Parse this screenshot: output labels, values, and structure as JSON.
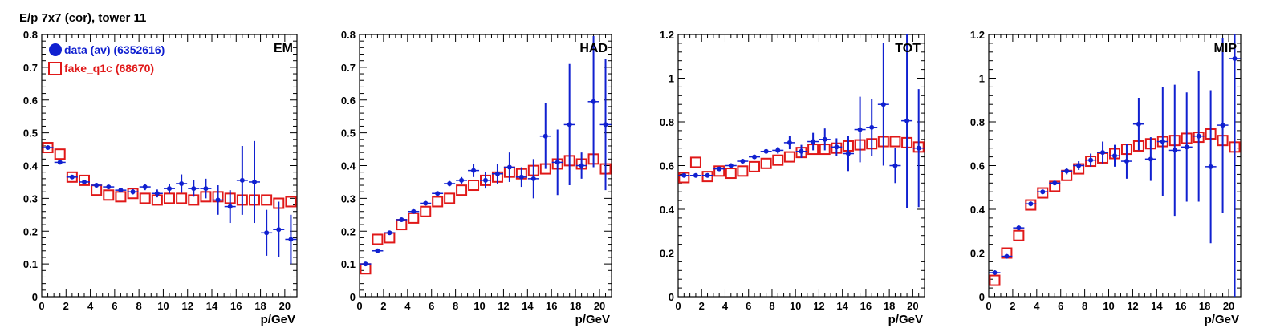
{
  "figure": {
    "title": "E/p 7x7 (cor), tower 11",
    "colors": {
      "data": "#1020d0",
      "fake": "#e01818",
      "axis": "#000000"
    }
  },
  "legend": {
    "items": [
      {
        "label": "data (av) (6352616)",
        "marker": "filled-circle",
        "color": "#1020d0"
      },
      {
        "label": "fake_q1c (68670)",
        "marker": "open-square",
        "color": "#e01818"
      }
    ],
    "placement": "top-left of first panel"
  },
  "chart_data": [
    {
      "type": "scatter",
      "panel_label": "EM",
      "xlabel": "p/GeV",
      "xlim": [
        0,
        21
      ],
      "ylim": [
        0,
        0.8
      ],
      "xticks": [
        0,
        2,
        4,
        6,
        8,
        10,
        12,
        14,
        16,
        18,
        20
      ],
      "yticks": [
        0,
        0.1,
        0.2,
        0.3,
        0.4,
        0.5,
        0.6,
        0.7,
        0.8
      ],
      "ytick_labels": [
        "0",
        "0.1",
        "0.2",
        "0.3",
        "0.4",
        "0.5",
        "0.6",
        "0.7",
        "0.8"
      ],
      "series": [
        {
          "name": "data (av) (6352616)",
          "x": [
            0.5,
            1.5,
            2.5,
            3.5,
            4.5,
            5.5,
            6.5,
            7.5,
            8.5,
            9.5,
            10.5,
            11.5,
            12.5,
            13.5,
            14.5,
            15.5,
            16.5,
            17.5,
            18.5,
            19.5,
            20.5
          ],
          "y": [
            0.455,
            0.41,
            0.365,
            0.35,
            0.34,
            0.335,
            0.325,
            0.32,
            0.335,
            0.315,
            0.33,
            0.345,
            0.33,
            0.33,
            0.295,
            0.275,
            0.355,
            0.35,
            0.195,
            0.205,
            0.175
          ],
          "yerr": [
            0.004,
            0.004,
            0.004,
            0.004,
            0.004,
            0.005,
            0.006,
            0.008,
            0.01,
            0.012,
            0.015,
            0.028,
            0.025,
            0.03,
            0.045,
            0.05,
            0.105,
            0.125,
            0.07,
            0.085,
            0.075
          ]
        },
        {
          "name": "fake_q1c (68670)",
          "x": [
            0.5,
            1.5,
            2.5,
            3.5,
            4.5,
            5.5,
            6.5,
            7.5,
            8.5,
            9.5,
            10.5,
            11.5,
            12.5,
            13.5,
            14.5,
            15.5,
            16.5,
            17.5,
            18.5,
            19.5,
            20.5
          ],
          "y": [
            0.455,
            0.435,
            0.365,
            0.355,
            0.325,
            0.31,
            0.305,
            0.315,
            0.3,
            0.295,
            0.3,
            0.3,
            0.295,
            0.305,
            0.305,
            0.3,
            0.295,
            0.295,
            0.295,
            0.285,
            0.29
          ]
        }
      ]
    },
    {
      "type": "scatter",
      "panel_label": "HAD",
      "xlabel": "p/GeV",
      "xlim": [
        0,
        21
      ],
      "ylim": [
        0,
        0.8
      ],
      "xticks": [
        0,
        2,
        4,
        6,
        8,
        10,
        12,
        14,
        16,
        18,
        20
      ],
      "yticks": [
        0,
        0.1,
        0.2,
        0.3,
        0.4,
        0.5,
        0.6,
        0.7,
        0.8
      ],
      "ytick_labels": [
        "0",
        "0.1",
        "0.2",
        "0.3",
        "0.4",
        "0.5",
        "0.6",
        "0.7",
        "0.8"
      ],
      "series": [
        {
          "name": "data (av) (6352616)",
          "x": [
            0.5,
            1.5,
            2.5,
            3.5,
            4.5,
            5.5,
            6.5,
            7.5,
            8.5,
            9.5,
            10.5,
            11.5,
            12.5,
            13.5,
            14.5,
            15.5,
            16.5,
            17.5,
            18.5,
            19.5,
            20.5
          ],
          "y": [
            0.1,
            0.14,
            0.195,
            0.235,
            0.26,
            0.285,
            0.315,
            0.345,
            0.355,
            0.385,
            0.355,
            0.375,
            0.395,
            0.365,
            0.36,
            0.49,
            0.41,
            0.525,
            0.4,
            0.595,
            0.525
          ],
          "yerr": [
            0.004,
            0.004,
            0.004,
            0.004,
            0.004,
            0.005,
            0.006,
            0.008,
            0.01,
            0.02,
            0.025,
            0.03,
            0.045,
            0.03,
            0.06,
            0.1,
            0.1,
            0.185,
            0.04,
            0.2,
            0.2
          ]
        },
        {
          "name": "fake_q1c (68670)",
          "x": [
            0.5,
            1.5,
            2.5,
            3.5,
            4.5,
            5.5,
            6.5,
            7.5,
            8.5,
            9.5,
            10.5,
            11.5,
            12.5,
            13.5,
            14.5,
            15.5,
            16.5,
            17.5,
            18.5,
            19.5,
            20.5
          ],
          "y": [
            0.085,
            0.175,
            0.18,
            0.22,
            0.24,
            0.26,
            0.29,
            0.3,
            0.325,
            0.34,
            0.355,
            0.365,
            0.38,
            0.375,
            0.385,
            0.39,
            0.405,
            0.415,
            0.405,
            0.42,
            0.39
          ]
        }
      ]
    },
    {
      "type": "scatter",
      "panel_label": "TOT",
      "xlabel": "p/GeV",
      "xlim": [
        0,
        21
      ],
      "ylim": [
        0,
        1.2
      ],
      "xticks": [
        0,
        2,
        4,
        6,
        8,
        10,
        12,
        14,
        16,
        18,
        20
      ],
      "yticks": [
        0,
        0.2,
        0.4,
        0.6,
        0.8,
        1.0,
        1.2
      ],
      "ytick_labels": [
        "0",
        "0.2",
        "0.4",
        "0.6",
        "0.8",
        "1",
        "1.2"
      ],
      "series": [
        {
          "name": "data (av) (6352616)",
          "x": [
            0.5,
            1.5,
            2.5,
            3.5,
            4.5,
            5.5,
            6.5,
            7.5,
            8.5,
            9.5,
            10.5,
            11.5,
            12.5,
            13.5,
            14.5,
            15.5,
            16.5,
            17.5,
            18.5,
            19.5,
            20.5
          ],
          "y": [
            0.555,
            0.555,
            0.555,
            0.585,
            0.6,
            0.62,
            0.64,
            0.665,
            0.67,
            0.705,
            0.665,
            0.71,
            0.72,
            0.685,
            0.655,
            0.765,
            0.775,
            0.88,
            0.6,
            0.805,
            0.68
          ],
          "yerr": [
            0.004,
            0.004,
            0.004,
            0.005,
            0.005,
            0.006,
            0.008,
            0.01,
            0.015,
            0.03,
            0.03,
            0.04,
            0.05,
            0.04,
            0.08,
            0.15,
            0.13,
            0.28,
            0.08,
            0.4,
            0.27
          ]
        },
        {
          "name": "fake_q1c (68670)",
          "x": [
            0.5,
            1.5,
            2.5,
            3.5,
            4.5,
            5.5,
            6.5,
            7.5,
            8.5,
            9.5,
            10.5,
            11.5,
            12.5,
            13.5,
            14.5,
            15.5,
            16.5,
            17.5,
            18.5,
            19.5,
            20.5
          ],
          "y": [
            0.545,
            0.615,
            0.55,
            0.575,
            0.565,
            0.575,
            0.595,
            0.61,
            0.625,
            0.64,
            0.66,
            0.675,
            0.675,
            0.68,
            0.69,
            0.695,
            0.7,
            0.71,
            0.71,
            0.705,
            0.685
          ]
        }
      ]
    },
    {
      "type": "scatter",
      "panel_label": "MIP",
      "xlabel": "p/GeV",
      "xlim": [
        0,
        21
      ],
      "ylim": [
        0,
        1.2
      ],
      "xticks": [
        0,
        2,
        4,
        6,
        8,
        10,
        12,
        14,
        16,
        18,
        20
      ],
      "yticks": [
        0,
        0.2,
        0.4,
        0.6,
        0.8,
        1.0,
        1.2
      ],
      "ytick_labels": [
        "0",
        "0.2",
        "0.4",
        "0.6",
        "0.8",
        "1",
        "1.2"
      ],
      "series": [
        {
          "name": "data (av) (6352616)",
          "x": [
            0.5,
            1.5,
            2.5,
            3.5,
            4.5,
            5.5,
            6.5,
            7.5,
            8.5,
            9.5,
            10.5,
            11.5,
            12.5,
            13.5,
            14.5,
            15.5,
            16.5,
            17.5,
            18.5,
            19.5,
            20.5
          ],
          "y": [
            0.11,
            0.185,
            0.315,
            0.425,
            0.48,
            0.52,
            0.575,
            0.6,
            0.625,
            0.66,
            0.645,
            0.62,
            0.79,
            0.63,
            0.71,
            0.67,
            0.685,
            0.735,
            0.595,
            0.785,
            1.09
          ],
          "yerr": [
            0.005,
            0.005,
            0.006,
            0.007,
            0.008,
            0.01,
            0.015,
            0.02,
            0.03,
            0.05,
            0.05,
            0.08,
            0.12,
            0.1,
            0.25,
            0.3,
            0.25,
            0.3,
            0.35,
            0.4,
            1.09
          ]
        },
        {
          "name": "fake_q1c (68670)",
          "x": [
            0.5,
            1.5,
            2.5,
            3.5,
            4.5,
            5.5,
            6.5,
            7.5,
            8.5,
            9.5,
            10.5,
            11.5,
            12.5,
            13.5,
            14.5,
            15.5,
            16.5,
            17.5,
            18.5,
            19.5,
            20.5
          ],
          "y": [
            0.075,
            0.2,
            0.28,
            0.42,
            0.475,
            0.505,
            0.555,
            0.585,
            0.62,
            0.635,
            0.655,
            0.675,
            0.69,
            0.7,
            0.71,
            0.715,
            0.725,
            0.73,
            0.745,
            0.715,
            0.685
          ]
        }
      ]
    }
  ]
}
